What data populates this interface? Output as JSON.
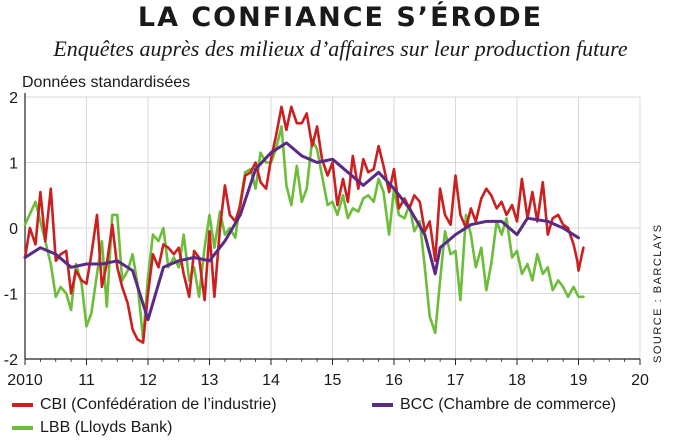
{
  "header": {
    "title": "LA CONFIANCE S’ÉRODE",
    "subtitle": "Enquêtes auprès des milieux d’affaires sur leur production future",
    "units": "Données standardisées",
    "source": "SOURCE : BARCLAYS"
  },
  "colors": {
    "cbi": "#cc1f1f",
    "bcc": "#5a2a86",
    "lbb": "#6cbd3a",
    "axis": "#222222",
    "grid": "#d8d8d8"
  },
  "chart_data": {
    "type": "line",
    "title": "LA CONFIANCE S’ÉRODE",
    "subtitle": "Enquêtes auprès des milieux d’affaires sur leur production future",
    "ylabel": "Données standardisées",
    "xlim": [
      2010,
      2020
    ],
    "ylim": [
      -2,
      2
    ],
    "x_ticks": [
      2010,
      2011,
      2012,
      2013,
      2014,
      2015,
      2016,
      2017,
      2018,
      2019,
      2020
    ],
    "x_tick_labels": [
      "2010",
      "11",
      "12",
      "13",
      "14",
      "15",
      "16",
      "17",
      "18",
      "19",
      "20"
    ],
    "y_ticks": [
      -2,
      -1,
      0,
      1,
      2
    ],
    "y_tick_labels": [
      "-2",
      "-1",
      "0",
      "1",
      "2"
    ],
    "grid": true,
    "series": [
      {
        "name": "CBI (Confédération de l’industrie)",
        "color": "#cc1f1f",
        "points": [
          [
            2010.0,
            -0.45
          ],
          [
            2010.08,
            0.0
          ],
          [
            2010.17,
            -0.25
          ],
          [
            2010.25,
            0.55
          ],
          [
            2010.33,
            -0.2
          ],
          [
            2010.42,
            0.6
          ],
          [
            2010.5,
            -0.5
          ],
          [
            2010.58,
            -0.4
          ],
          [
            2010.67,
            -0.35
          ],
          [
            2010.75,
            -1.0
          ],
          [
            2010.83,
            -0.65
          ],
          [
            2010.92,
            -0.8
          ],
          [
            2011.0,
            -0.85
          ],
          [
            2011.08,
            -0.4
          ],
          [
            2011.17,
            0.2
          ],
          [
            2011.25,
            -0.9
          ],
          [
            2011.33,
            -0.55
          ],
          [
            2011.42,
            0.05
          ],
          [
            2011.5,
            -0.6
          ],
          [
            2011.58,
            -0.9
          ],
          [
            2011.67,
            -1.15
          ],
          [
            2011.75,
            -1.55
          ],
          [
            2011.83,
            -1.7
          ],
          [
            2011.92,
            -1.75
          ],
          [
            2012.0,
            -1.0
          ],
          [
            2012.08,
            -0.4
          ],
          [
            2012.17,
            -0.6
          ],
          [
            2012.25,
            -0.25
          ],
          [
            2012.33,
            -0.3
          ],
          [
            2012.42,
            -0.4
          ],
          [
            2012.5,
            -0.3
          ],
          [
            2012.58,
            -0.7
          ],
          [
            2012.67,
            -1.05
          ],
          [
            2012.75,
            -0.35
          ],
          [
            2012.83,
            -0.45
          ],
          [
            2012.92,
            -1.1
          ],
          [
            2013.0,
            -0.05
          ],
          [
            2013.08,
            -1.05
          ],
          [
            2013.17,
            0.0
          ],
          [
            2013.25,
            0.65
          ],
          [
            2013.33,
            0.2
          ],
          [
            2013.42,
            0.1
          ],
          [
            2013.5,
            0.35
          ],
          [
            2013.58,
            0.8
          ],
          [
            2013.67,
            0.85
          ],
          [
            2013.75,
            1.0
          ],
          [
            2013.83,
            0.7
          ],
          [
            2013.92,
            0.6
          ],
          [
            2014.0,
            1.05
          ],
          [
            2014.08,
            1.4
          ],
          [
            2014.17,
            1.85
          ],
          [
            2014.25,
            1.5
          ],
          [
            2014.33,
            1.85
          ],
          [
            2014.42,
            1.6
          ],
          [
            2014.5,
            1.6
          ],
          [
            2014.58,
            1.75
          ],
          [
            2014.67,
            1.25
          ],
          [
            2014.75,
            1.55
          ],
          [
            2014.83,
            1.05
          ],
          [
            2014.92,
            0.8
          ],
          [
            2015.0,
            1.0
          ],
          [
            2015.08,
            0.35
          ],
          [
            2015.17,
            0.75
          ],
          [
            2015.25,
            0.4
          ],
          [
            2015.33,
            1.1
          ],
          [
            2015.42,
            0.6
          ],
          [
            2015.5,
            1.05
          ],
          [
            2015.58,
            0.85
          ],
          [
            2015.67,
            0.9
          ],
          [
            2015.75,
            1.25
          ],
          [
            2015.83,
            0.95
          ],
          [
            2015.92,
            0.55
          ],
          [
            2016.0,
            0.9
          ],
          [
            2016.08,
            0.3
          ],
          [
            2016.17,
            0.45
          ],
          [
            2016.25,
            0.3
          ],
          [
            2016.33,
            0.5
          ],
          [
            2016.42,
            0.4
          ],
          [
            2016.5,
            -0.05
          ],
          [
            2016.58,
            0.1
          ],
          [
            2016.67,
            -0.5
          ],
          [
            2016.75,
            0.6
          ],
          [
            2016.83,
            0.2
          ],
          [
            2016.92,
            0.05
          ],
          [
            2017.0,
            0.8
          ],
          [
            2017.08,
            0.2
          ],
          [
            2017.17,
            0.0
          ],
          [
            2017.25,
            0.3
          ],
          [
            2017.33,
            0.1
          ],
          [
            2017.42,
            0.45
          ],
          [
            2017.5,
            0.6
          ],
          [
            2017.58,
            0.5
          ],
          [
            2017.67,
            0.3
          ],
          [
            2017.75,
            0.4
          ],
          [
            2017.83,
            0.2
          ],
          [
            2017.92,
            0.35
          ],
          [
            2018.0,
            0.1
          ],
          [
            2018.08,
            0.75
          ],
          [
            2018.17,
            0.15
          ],
          [
            2018.25,
            0.55
          ],
          [
            2018.33,
            0.1
          ],
          [
            2018.42,
            0.7
          ],
          [
            2018.5,
            -0.1
          ],
          [
            2018.58,
            0.15
          ],
          [
            2018.67,
            0.2
          ],
          [
            2018.75,
            0.05
          ],
          [
            2018.83,
            0.0
          ],
          [
            2018.92,
            -0.25
          ],
          [
            2018.98,
            -0.5
          ],
          [
            2019.0,
            -0.65
          ],
          [
            2019.08,
            -0.3
          ]
        ]
      },
      {
        "name": "BCC (Chambre de commerce)",
        "color": "#5a2a86",
        "points": [
          [
            2010.0,
            -0.45
          ],
          [
            2010.25,
            -0.3
          ],
          [
            2010.5,
            -0.4
          ],
          [
            2010.75,
            -0.6
          ],
          [
            2011.0,
            -0.55
          ],
          [
            2011.25,
            -0.55
          ],
          [
            2011.5,
            -0.5
          ],
          [
            2011.75,
            -0.65
          ],
          [
            2012.0,
            -1.4
          ],
          [
            2012.25,
            -0.6
          ],
          [
            2012.5,
            -0.5
          ],
          [
            2012.75,
            -0.45
          ],
          [
            2013.0,
            -0.5
          ],
          [
            2013.25,
            -0.2
          ],
          [
            2013.5,
            0.2
          ],
          [
            2013.75,
            0.9
          ],
          [
            2014.0,
            1.15
          ],
          [
            2014.25,
            1.3
          ],
          [
            2014.5,
            1.1
          ],
          [
            2014.75,
            1.0
          ],
          [
            2015.0,
            1.05
          ],
          [
            2015.25,
            0.85
          ],
          [
            2015.5,
            0.65
          ],
          [
            2015.75,
            0.85
          ],
          [
            2016.0,
            0.6
          ],
          [
            2016.25,
            0.3
          ],
          [
            2016.5,
            -0.1
          ],
          [
            2016.67,
            -0.7
          ],
          [
            2016.75,
            -0.3
          ],
          [
            2017.0,
            -0.1
          ],
          [
            2017.25,
            0.05
          ],
          [
            2017.5,
            0.1
          ],
          [
            2017.75,
            0.1
          ],
          [
            2018.0,
            -0.1
          ],
          [
            2018.17,
            0.15
          ],
          [
            2018.5,
            0.1
          ],
          [
            2018.75,
            0.0
          ],
          [
            2019.0,
            -0.15
          ]
        ]
      },
      {
        "name": "LBB (Lloyds Bank)",
        "color": "#6cbd3a",
        "points": [
          [
            2010.0,
            0.05
          ],
          [
            2010.17,
            0.4
          ],
          [
            2010.33,
            -0.2
          ],
          [
            2010.42,
            -0.55
          ],
          [
            2010.5,
            -1.05
          ],
          [
            2010.58,
            -0.9
          ],
          [
            2010.67,
            -1.0
          ],
          [
            2010.75,
            -1.25
          ],
          [
            2010.83,
            -0.55
          ],
          [
            2010.92,
            -0.85
          ],
          [
            2011.0,
            -1.5
          ],
          [
            2011.08,
            -1.3
          ],
          [
            2011.17,
            -0.7
          ],
          [
            2011.25,
            -0.2
          ],
          [
            2011.33,
            -1.2
          ],
          [
            2011.42,
            0.2
          ],
          [
            2011.5,
            0.2
          ],
          [
            2011.58,
            -0.8
          ],
          [
            2011.67,
            -0.65
          ],
          [
            2011.75,
            -0.4
          ],
          [
            2011.83,
            -0.85
          ],
          [
            2011.92,
            -1.7
          ],
          [
            2012.0,
            -0.75
          ],
          [
            2012.08,
            -0.1
          ],
          [
            2012.17,
            -0.2
          ],
          [
            2012.25,
            0.0
          ],
          [
            2012.33,
            -0.6
          ],
          [
            2012.42,
            -0.45
          ],
          [
            2012.5,
            -0.6
          ],
          [
            2012.58,
            -0.1
          ],
          [
            2012.67,
            -0.8
          ],
          [
            2012.75,
            -0.6
          ],
          [
            2012.83,
            -1.05
          ],
          [
            2012.92,
            -0.3
          ],
          [
            2013.0,
            0.2
          ],
          [
            2013.08,
            -0.3
          ],
          [
            2013.17,
            0.25
          ],
          [
            2013.25,
            -0.1
          ],
          [
            2013.33,
            0.0
          ],
          [
            2013.42,
            -0.15
          ],
          [
            2013.5,
            0.4
          ],
          [
            2013.58,
            0.85
          ],
          [
            2013.67,
            0.9
          ],
          [
            2013.75,
            0.6
          ],
          [
            2013.83,
            1.15
          ],
          [
            2013.92,
            1.0
          ],
          [
            2014.0,
            1.0
          ],
          [
            2014.08,
            1.2
          ],
          [
            2014.17,
            1.55
          ],
          [
            2014.25,
            0.65
          ],
          [
            2014.33,
            0.35
          ],
          [
            2014.42,
            0.95
          ],
          [
            2014.5,
            0.4
          ],
          [
            2014.58,
            0.6
          ],
          [
            2014.67,
            1.35
          ],
          [
            2014.75,
            1.2
          ],
          [
            2014.83,
            0.8
          ],
          [
            2014.92,
            0.35
          ],
          [
            2015.0,
            0.4
          ],
          [
            2015.08,
            0.2
          ],
          [
            2015.17,
            0.5
          ],
          [
            2015.25,
            0.15
          ],
          [
            2015.33,
            0.3
          ],
          [
            2015.42,
            0.25
          ],
          [
            2015.5,
            0.45
          ],
          [
            2015.58,
            0.5
          ],
          [
            2015.67,
            0.4
          ],
          [
            2015.75,
            0.75
          ],
          [
            2015.83,
            0.55
          ],
          [
            2015.92,
            -0.1
          ],
          [
            2016.0,
            0.6
          ],
          [
            2016.08,
            0.2
          ],
          [
            2016.17,
            0.15
          ],
          [
            2016.25,
            0.35
          ],
          [
            2016.33,
            -0.05
          ],
          [
            2016.42,
            0.1
          ],
          [
            2016.5,
            -0.6
          ],
          [
            2016.58,
            -1.35
          ],
          [
            2016.67,
            -1.6
          ],
          [
            2016.75,
            -0.8
          ],
          [
            2016.83,
            -0.05
          ],
          [
            2016.92,
            -0.4
          ],
          [
            2017.0,
            -0.35
          ],
          [
            2017.08,
            -1.1
          ],
          [
            2017.17,
            0.2
          ],
          [
            2017.25,
            -0.1
          ],
          [
            2017.33,
            -0.6
          ],
          [
            2017.42,
            -0.3
          ],
          [
            2017.5,
            -0.95
          ],
          [
            2017.58,
            -0.55
          ],
          [
            2017.67,
            0.1
          ],
          [
            2017.75,
            -0.1
          ],
          [
            2017.83,
            0.15
          ],
          [
            2017.92,
            -0.45
          ],
          [
            2018.0,
            -0.35
          ],
          [
            2018.08,
            -0.7
          ],
          [
            2018.17,
            -0.55
          ],
          [
            2018.25,
            -0.8
          ],
          [
            2018.33,
            -0.4
          ],
          [
            2018.42,
            -0.7
          ],
          [
            2018.5,
            -0.6
          ],
          [
            2018.58,
            -0.95
          ],
          [
            2018.67,
            -0.8
          ],
          [
            2018.75,
            -0.9
          ],
          [
            2018.83,
            -1.05
          ],
          [
            2018.92,
            -0.9
          ],
          [
            2019.0,
            -1.05
          ],
          [
            2019.08,
            -1.05
          ]
        ]
      }
    ]
  }
}
